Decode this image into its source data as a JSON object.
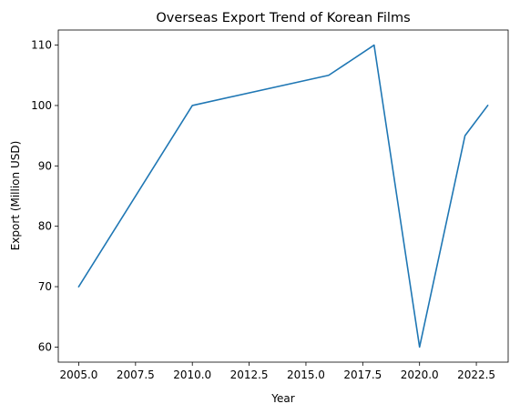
{
  "chart_data": {
    "type": "line",
    "title": "Overseas Export Trend of Korean Films",
    "xlabel": "Year",
    "ylabel": "Export (Million USD)",
    "x": [
      2005,
      2010,
      2016,
      2018,
      2020,
      2022,
      2023
    ],
    "series": [
      {
        "values": [
          70,
          100,
          105,
          110,
          60,
          95,
          100
        ],
        "color": "#1f77b4"
      }
    ],
    "xlim": [
      2004.1,
      2023.9
    ],
    "ylim": [
      57.5,
      112.5
    ],
    "xticks": [
      2005.0,
      2007.5,
      2010.0,
      2012.5,
      2015.0,
      2017.5,
      2020.0,
      2022.5
    ],
    "xtick_labels": [
      "2005.0",
      "2007.5",
      "2010.0",
      "2012.5",
      "2015.0",
      "2017.5",
      "2020.0",
      "2022.5"
    ],
    "yticks": [
      60,
      70,
      80,
      90,
      100,
      110
    ],
    "ytick_labels": [
      "60",
      "70",
      "80",
      "90",
      "100",
      "110"
    ],
    "grid": false,
    "legend": "none"
  }
}
